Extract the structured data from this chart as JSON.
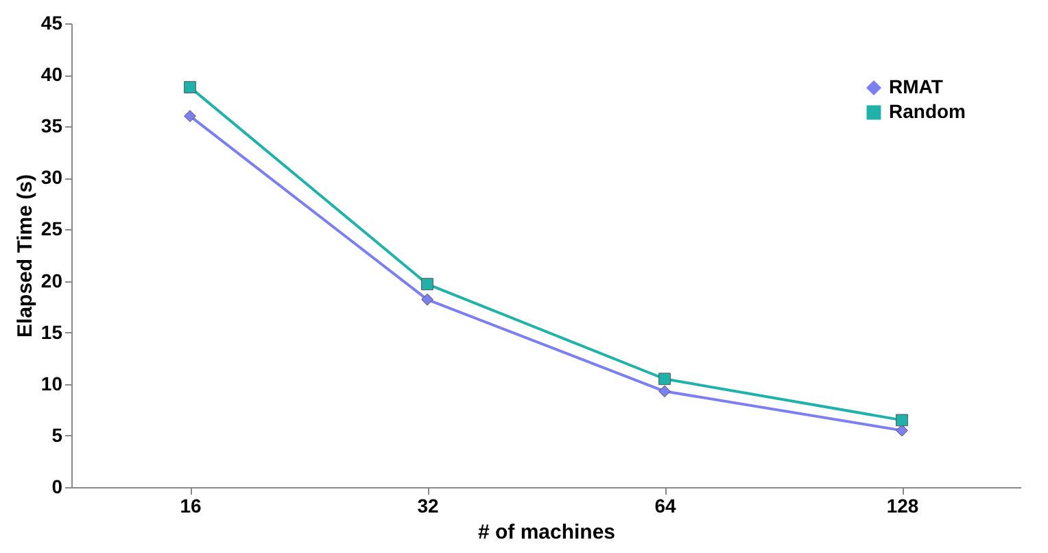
{
  "chart_data": {
    "type": "line",
    "xlabel": "# of machines",
    "ylabel": "Elapsed Time (s)",
    "categories": [
      "16",
      "32",
      "64",
      "128"
    ],
    "series": [
      {
        "name": "RMAT",
        "color": "#7b7ff0",
        "marker": "diamond",
        "values": [
          36,
          18.2,
          9.3,
          5.5
        ]
      },
      {
        "name": "Random",
        "color": "#20b2aa",
        "marker": "square",
        "values": [
          38.8,
          19.7,
          10.5,
          6.5
        ]
      }
    ],
    "ylim": [
      0,
      45
    ],
    "yticks": [
      0,
      5,
      10,
      15,
      20,
      25,
      30,
      35,
      40,
      45
    ],
    "grid": false,
    "legend": "top right",
    "line_style": "solid"
  }
}
